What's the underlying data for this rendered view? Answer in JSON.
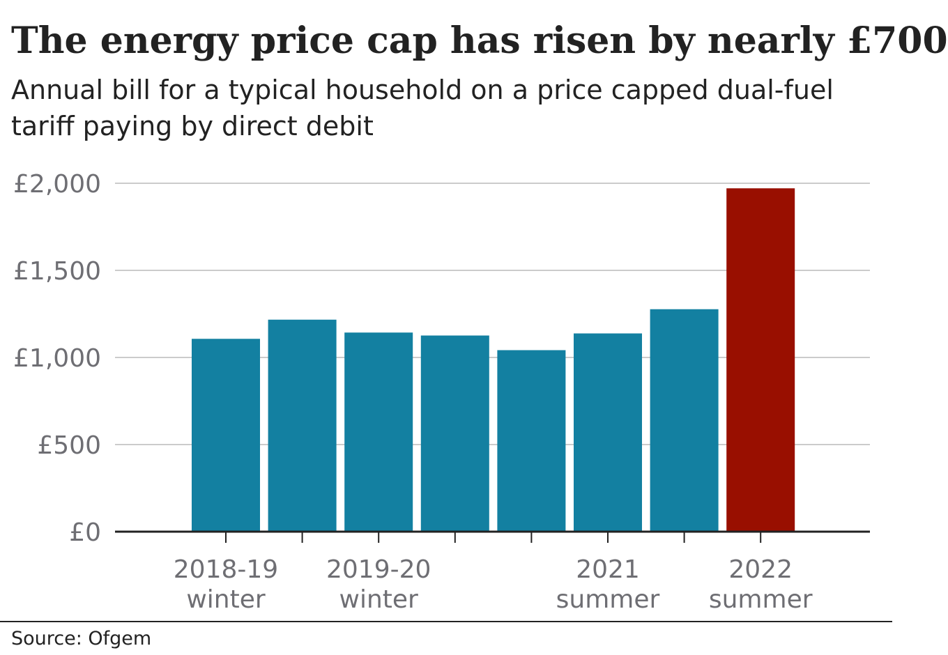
{
  "header": {
    "title": "The energy price cap has risen by nearly £700",
    "subtitle": "Annual bill for a typical household on a price capped dual-fuel tariff paying by direct debit"
  },
  "footer": {
    "source": "Source: Ofgem"
  },
  "colors": {
    "bar_default": "#1380A1",
    "bar_highlight": "#990F00",
    "gridline": "#CBCBCB",
    "axis": "#222222",
    "tick_label": "#6E6E73"
  },
  "chart_data": {
    "type": "bar",
    "title": "The energy price cap has risen by nearly £700",
    "subtitle": "Annual bill for a typical household on a price capped dual-fuel tariff paying by direct debit",
    "xlabel": "",
    "ylabel": "",
    "ylim": [
      0,
      2000
    ],
    "y_ticks": [
      0,
      500,
      1000,
      1500,
      2000
    ],
    "y_tick_labels": [
      "£0",
      "£500",
      "£1,000",
      "£1,500",
      "£2,000"
    ],
    "grid": true,
    "categories": [
      "",
      "",
      "",
      "",
      "",
      "",
      "",
      ""
    ],
    "x_tick_labels": [
      {
        "index": 0,
        "lines": [
          "2018-19",
          "winter"
        ]
      },
      {
        "index": 2,
        "lines": [
          "2019-20",
          "winter"
        ]
      },
      {
        "index": 5,
        "lines": [
          "2021",
          "summer"
        ]
      },
      {
        "index": 7,
        "lines": [
          "2022",
          "summer"
        ]
      }
    ],
    "values": [
      1107,
      1217,
      1143,
      1126,
      1042,
      1138,
      1277,
      1971
    ],
    "highlight_index": 7
  }
}
